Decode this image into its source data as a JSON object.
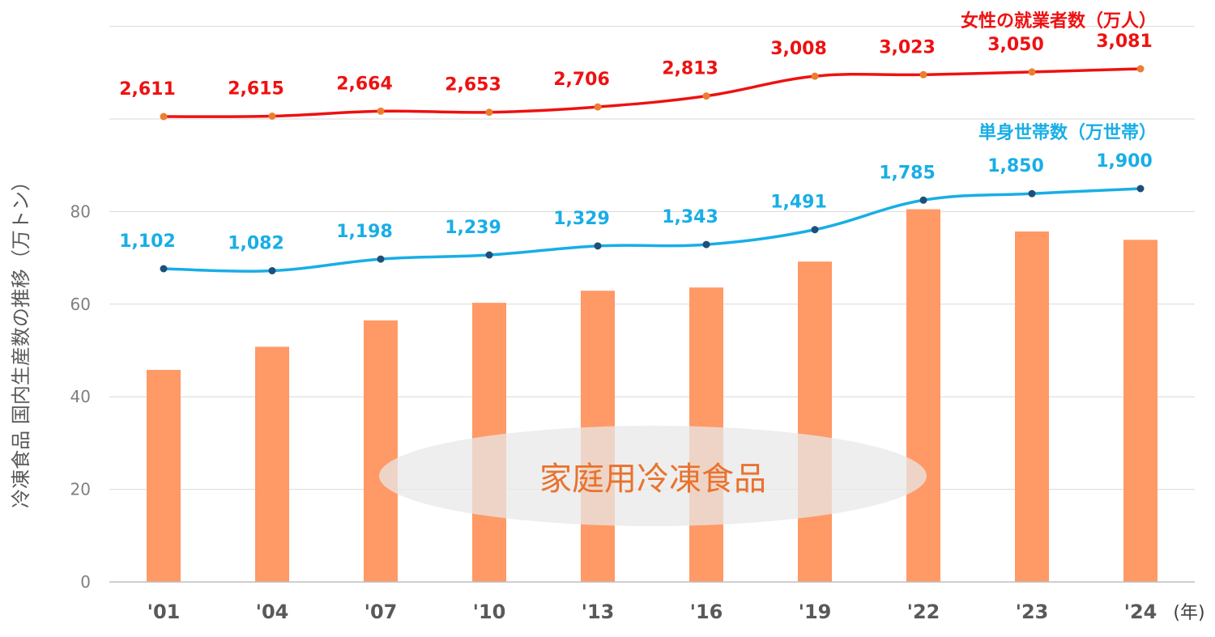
{
  "chart_data": {
    "type": "bar",
    "categories": [
      "'01",
      "'04",
      "'07",
      "'10",
      "'13",
      "'16",
      "'19",
      "'22",
      "'23",
      "'24"
    ],
    "bars": {
      "values": [
        45.8,
        50.8,
        56.5,
        60.3,
        62.9,
        63.6,
        69.2,
        80.5,
        75.7,
        73.9
      ]
    },
    "ylabel": "冷凍食品 国内生産数の推移（万トン）",
    "xunit": "(年)",
    "ylim": [
      0,
      120
    ],
    "yticks": [
      "0",
      "20",
      "40",
      "60",
      "80"
    ],
    "grid": true,
    "lines": [
      {
        "name": "女性の就業者数（万人）",
        "values": [
          2611,
          2615,
          2664,
          2653,
          2706,
          2813,
          3008,
          3023,
          3050,
          3081
        ],
        "labels": [
          "2,611",
          "2,615",
          "2,664",
          "2,653",
          "2,706",
          "2,813",
          "3,008",
          "3,023",
          "3,050",
          "3,081"
        ],
        "color": "#ee1111"
      },
      {
        "name": "単身世帯数（万世帯）",
        "values": [
          1102,
          1082,
          1198,
          1239,
          1329,
          1343,
          1491,
          1785,
          1850,
          1900
        ],
        "labels": [
          "1,102",
          "1,082",
          "1,198",
          "1,239",
          "1,329",
          "1,343",
          "1,491",
          "1,785",
          "1,850",
          "1,900"
        ],
        "color": "#18aee6"
      }
    ],
    "annotation": "家庭用冷凍食品",
    "colors": {
      "bar": "#ff9966",
      "annotation": "#e8732e"
    }
  }
}
